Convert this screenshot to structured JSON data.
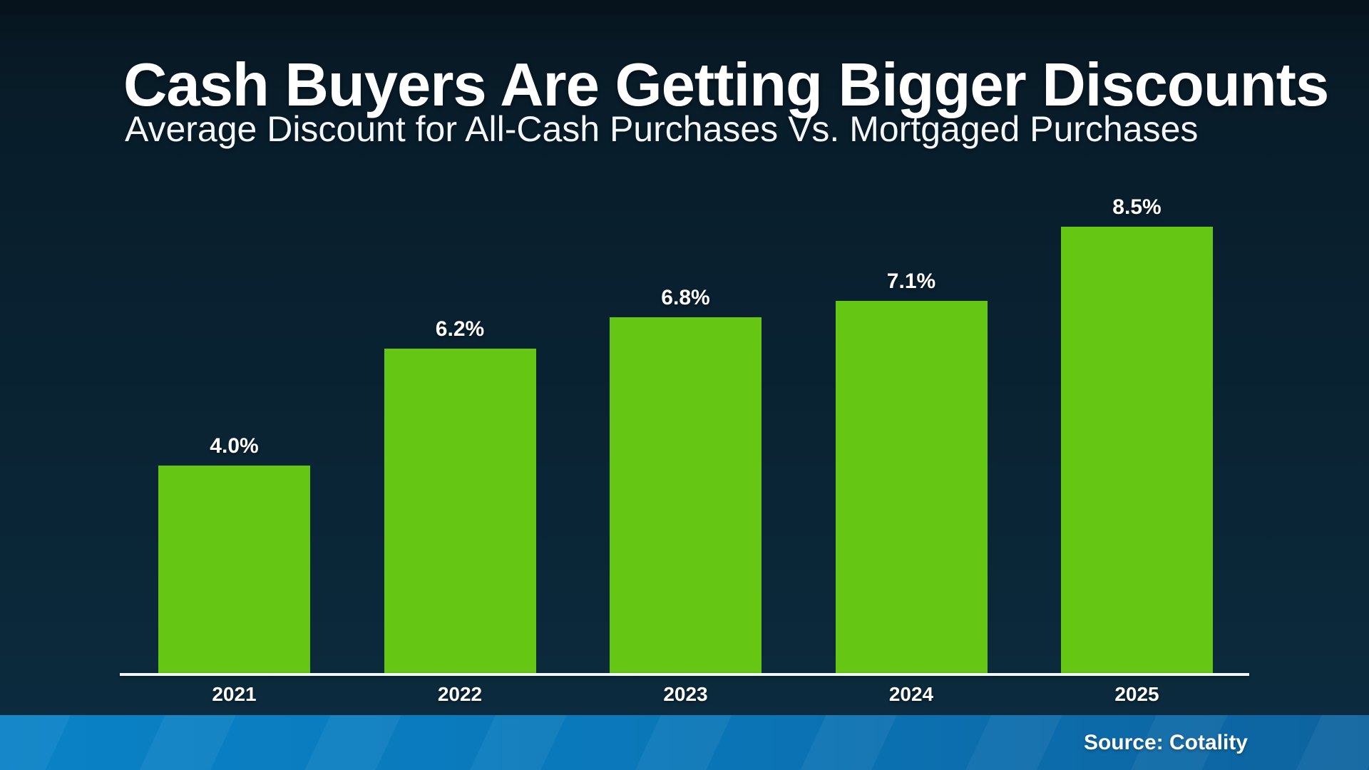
{
  "header": {
    "title": "Cash Buyers Are Getting Bigger Discounts",
    "subtitle": "Average Discount for All-Cash Purchases Vs. Mortgaged Purchases"
  },
  "footer": {
    "source": "Source: Cotality"
  },
  "chart_data": {
    "type": "bar",
    "title": "Cash Buyers Are Getting Bigger Discounts",
    "subtitle": "Average Discount for All-Cash Purchases Vs. Mortgaged Purchases",
    "categories": [
      "2021",
      "2022",
      "2023",
      "2024",
      "2025"
    ],
    "values": [
      4.0,
      6.2,
      6.8,
      7.1,
      8.5
    ],
    "value_labels": [
      "4.0%",
      "6.2%",
      "6.8%",
      "7.1%",
      "8.5%"
    ],
    "xlabel": "",
    "ylabel": "",
    "ylim": [
      0,
      9.5
    ],
    "grid": false,
    "legend": false,
    "bar_color": "#65c614",
    "axis_line_color": "#f2f5f6",
    "background_color": "#092131",
    "footer_bar_color": "#0a7cc0",
    "text_color": "#ffffff",
    "source": "Source: Cotality"
  }
}
